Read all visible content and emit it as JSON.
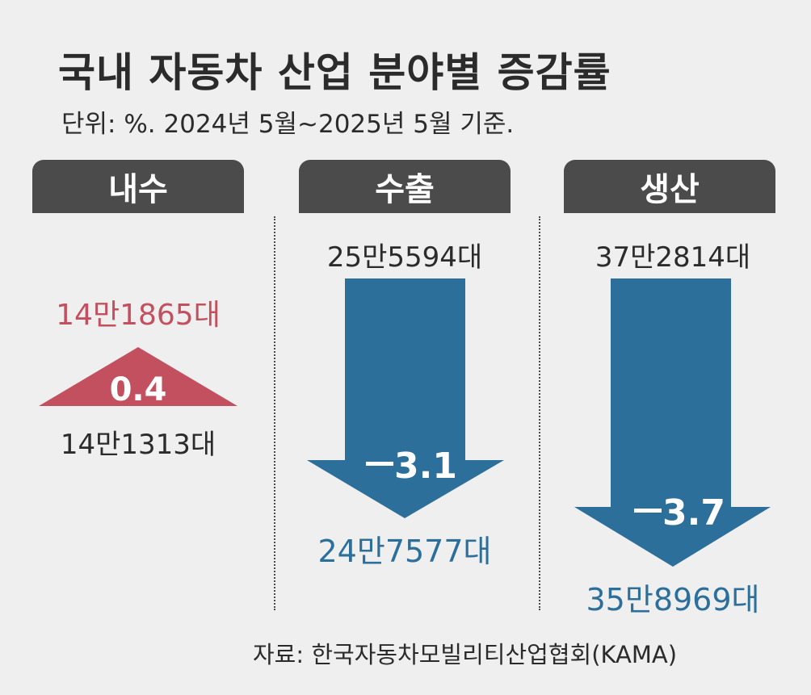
{
  "title": "국내 자동차 산업 분야별 증감률",
  "subtitle": "단위: %. 2024년 5월~2025년 5월 기준.",
  "source": "자료: 한국자동차모빌리티산업협회(KAMA)",
  "colors": {
    "background": "#efefef",
    "tab": "#4b4b4b",
    "increase": "#c3505f",
    "decrease": "#2c6f9a",
    "text": "#2b2b2b"
  },
  "chart_data": {
    "type": "bar",
    "categories": [
      "내수",
      "수출",
      "생산"
    ],
    "items": [
      {
        "category": "내수",
        "direction": "up",
        "change": 0.4,
        "change_label": "0.4",
        "before_label": "14만1313대",
        "after_label": "14만1865대"
      },
      {
        "category": "수출",
        "direction": "down",
        "change": -3.1,
        "change_label": "3.1",
        "before_label": "25만5594대",
        "after_label": "24만7577대"
      },
      {
        "category": "생산",
        "direction": "down",
        "change": -3.7,
        "change_label": "3.7",
        "before_label": "37만2814대",
        "after_label": "35만8969대"
      }
    ],
    "before_units": [
      141313,
      255594,
      372814
    ],
    "after_units": [
      141865,
      247577,
      358969
    ],
    "values": [
      0.4,
      -3.1,
      -3.7
    ],
    "unit": "%"
  }
}
